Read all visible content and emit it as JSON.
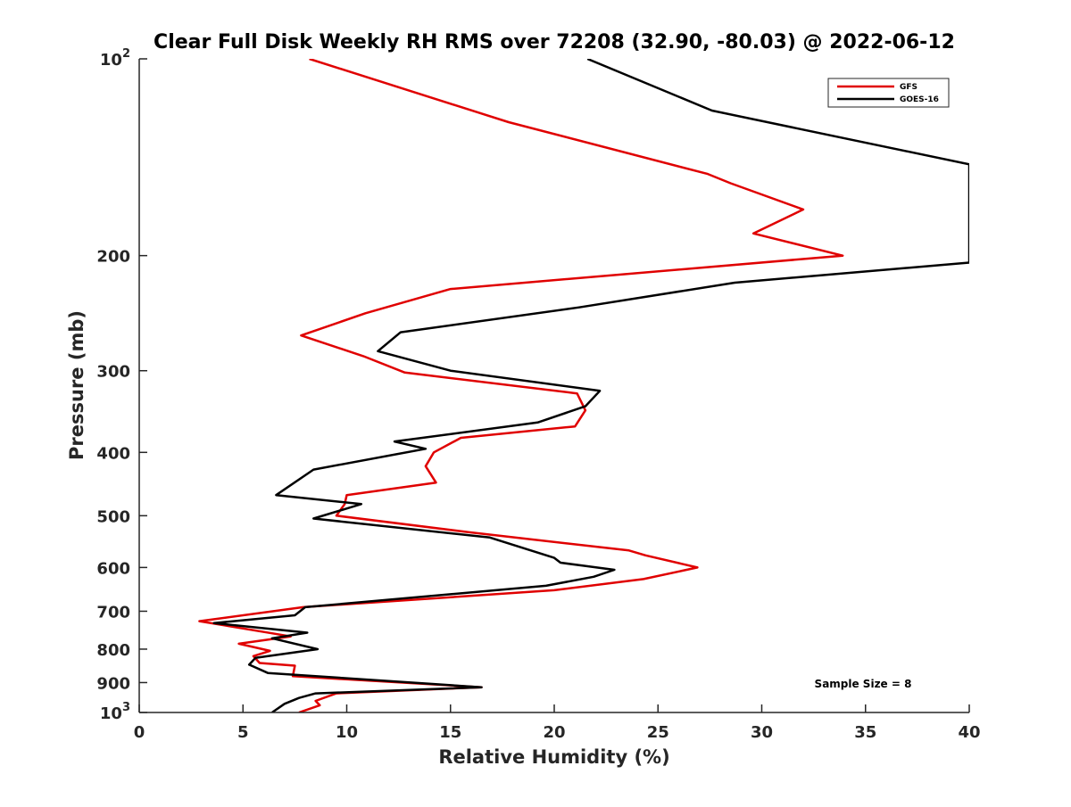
{
  "chart_data": {
    "type": "line",
    "title": "Clear Full Disk Weekly RH RMS over 72208 (32.90, -80.03) @ 2022-06-12",
    "xlabel": "Relative Humidity (%)",
    "ylabel": "Pressure (mb)",
    "xlim": [
      0,
      40
    ],
    "ylim": [
      100,
      1000
    ],
    "y_scale": "log",
    "y_reversed": true,
    "x_ticks": [
      0,
      5,
      10,
      15,
      20,
      25,
      30,
      35,
      40
    ],
    "y_ticks": [
      100,
      200,
      300,
      400,
      500,
      600,
      700,
      800,
      900,
      1000
    ],
    "y_tick_labels": [
      {
        "base": "10",
        "exp": "2"
      },
      {
        "base": "200",
        "exp": ""
      },
      {
        "base": "300",
        "exp": ""
      },
      {
        "base": "400",
        "exp": ""
      },
      {
        "base": "500",
        "exp": ""
      },
      {
        "base": "600",
        "exp": ""
      },
      {
        "base": "700",
        "exp": ""
      },
      {
        "base": "800",
        "exp": ""
      },
      {
        "base": "900",
        "exp": ""
      },
      {
        "base": "10",
        "exp": "3"
      }
    ],
    "legend_position": "top-right",
    "annotation": "Sample Size = 8",
    "series": [
      {
        "name": "GFS",
        "color": "#e00000",
        "points": [
          [
            8.2,
            100
          ],
          [
            17.8,
            125
          ],
          [
            27.4,
            150
          ],
          [
            28.5,
            155
          ],
          [
            32.0,
            170
          ],
          [
            29.6,
            185
          ],
          [
            33.9,
            200
          ],
          [
            15.0,
            225
          ],
          [
            10.9,
            245
          ],
          [
            7.8,
            265
          ],
          [
            10.8,
            285
          ],
          [
            12.8,
            302
          ],
          [
            21.1,
            325
          ],
          [
            21.5,
            345
          ],
          [
            21.0,
            365
          ],
          [
            15.5,
            380
          ],
          [
            14.2,
            400
          ],
          [
            13.8,
            420
          ],
          [
            14.3,
            445
          ],
          [
            10.0,
            465
          ],
          [
            9.9,
            480
          ],
          [
            9.5,
            500
          ],
          [
            15.9,
            530
          ],
          [
            23.6,
            565
          ],
          [
            24.4,
            575
          ],
          [
            26.9,
            600
          ],
          [
            24.3,
            625
          ],
          [
            20.0,
            650
          ],
          [
            7.9,
            690
          ],
          [
            2.9,
            725
          ],
          [
            7.3,
            765
          ],
          [
            4.8,
            785
          ],
          [
            6.3,
            805
          ],
          [
            5.5,
            820
          ],
          [
            5.8,
            840
          ],
          [
            7.5,
            848
          ],
          [
            7.4,
            880
          ],
          [
            16.5,
            915
          ],
          [
            9.5,
            935
          ],
          [
            8.5,
            960
          ],
          [
            8.7,
            975
          ],
          [
            7.7,
            1000
          ]
        ]
      },
      {
        "name": "GOES-16",
        "color": "#000000",
        "points": [
          [
            21.6,
            100
          ],
          [
            27.6,
            120
          ],
          [
            40.0,
            145
          ],
          [
            40.0,
            205
          ],
          [
            28.7,
            220
          ],
          [
            21.2,
            240
          ],
          [
            12.6,
            262
          ],
          [
            11.5,
            280
          ],
          [
            15.0,
            300
          ],
          [
            22.2,
            322
          ],
          [
            21.5,
            340
          ],
          [
            19.2,
            360
          ],
          [
            12.3,
            385
          ],
          [
            13.8,
            395
          ],
          [
            8.4,
            425
          ],
          [
            6.6,
            465
          ],
          [
            10.7,
            480
          ],
          [
            8.4,
            505
          ],
          [
            16.9,
            540
          ],
          [
            20.0,
            580
          ],
          [
            20.3,
            590
          ],
          [
            22.9,
            605
          ],
          [
            21.9,
            620
          ],
          [
            19.6,
            640
          ],
          [
            8.0,
            690
          ],
          [
            7.5,
            710
          ],
          [
            3.6,
            730
          ],
          [
            8.1,
            755
          ],
          [
            6.4,
            770
          ],
          [
            8.6,
            800
          ],
          [
            5.6,
            825
          ],
          [
            5.3,
            845
          ],
          [
            6.2,
            870
          ],
          [
            16.5,
            915
          ],
          [
            8.5,
            935
          ],
          [
            7.7,
            950
          ],
          [
            7.0,
            970
          ],
          [
            6.4,
            1000
          ]
        ]
      }
    ]
  }
}
